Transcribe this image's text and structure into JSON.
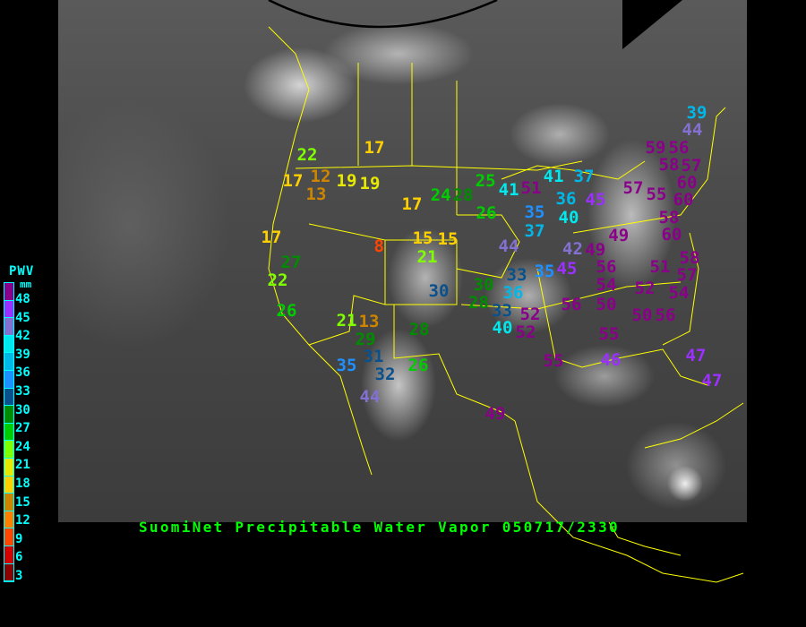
{
  "title": "SuomiNet Precipitable Water Vapor 050717/2330",
  "legend": {
    "title": "PWV",
    "unit": "mm",
    "ticks": [
      "48",
      "45",
      "42",
      "39",
      "36",
      "33",
      "30",
      "27",
      "24",
      "21",
      "18",
      "15",
      "12",
      "9",
      "6",
      "3"
    ],
    "colors": [
      "#8b008b",
      "#9b30ff",
      "#8470d0",
      "#00e8ee",
      "#00b8e8",
      "#1e90ff",
      "#0a508c",
      "#008b00",
      "#00cd00",
      "#7fff00",
      "#e8e800",
      "#ffd000",
      "#cd8500",
      "#ff8000",
      "#ff4500",
      "#d40000",
      "#8b0000"
    ]
  },
  "readings": [
    {
      "value": "22"
    },
    {
      "value": "17"
    },
    {
      "value": "17"
    },
    {
      "value": "12"
    },
    {
      "value": "13"
    },
    {
      "value": "19"
    },
    {
      "value": "19"
    },
    {
      "value": "17"
    },
    {
      "value": "24"
    },
    {
      "value": "28"
    },
    {
      "value": "25"
    },
    {
      "value": "26"
    },
    {
      "value": "17"
    },
    {
      "value": "8"
    },
    {
      "value": "15"
    },
    {
      "value": "15"
    },
    {
      "value": "21"
    },
    {
      "value": "27"
    },
    {
      "value": "22"
    },
    {
      "value": "26"
    },
    {
      "value": "21"
    },
    {
      "value": "13"
    },
    {
      "value": "29"
    },
    {
      "value": "28"
    },
    {
      "value": "31"
    },
    {
      "value": "35"
    },
    {
      "value": "32"
    },
    {
      "value": "26"
    },
    {
      "value": "44"
    },
    {
      "value": "30"
    },
    {
      "value": "30",
      "color": "#008b00"
    },
    {
      "value": "28"
    },
    {
      "value": "33",
      "color": "#0a508c"
    },
    {
      "value": "33",
      "color": "#0a508c"
    },
    {
      "value": "36"
    },
    {
      "value": "40"
    },
    {
      "value": "52"
    },
    {
      "value": "52"
    },
    {
      "value": "49"
    },
    {
      "value": "39",
      "color": "#00b8e8"
    },
    {
      "value": "44"
    },
    {
      "value": "59"
    },
    {
      "value": "56"
    },
    {
      "value": "58"
    },
    {
      "value": "57"
    },
    {
      "value": "41"
    },
    {
      "value": "37"
    },
    {
      "value": "41"
    },
    {
      "value": "51"
    },
    {
      "value": "57"
    },
    {
      "value": "60"
    },
    {
      "value": "55"
    },
    {
      "value": "60"
    },
    {
      "value": "58"
    },
    {
      "value": "60"
    },
    {
      "value": "36"
    },
    {
      "value": "45"
    },
    {
      "value": "35"
    },
    {
      "value": "40"
    },
    {
      "value": "37"
    },
    {
      "value": "49"
    },
    {
      "value": "44"
    },
    {
      "value": "42"
    },
    {
      "value": "49"
    },
    {
      "value": "35"
    },
    {
      "value": "45"
    },
    {
      "value": "56"
    },
    {
      "value": "51"
    },
    {
      "value": "58"
    },
    {
      "value": "57"
    },
    {
      "value": "54"
    },
    {
      "value": "52"
    },
    {
      "value": "54"
    },
    {
      "value": "56"
    },
    {
      "value": "50"
    },
    {
      "value": "50"
    },
    {
      "value": "56"
    },
    {
      "value": "55"
    },
    {
      "value": "55"
    },
    {
      "value": "46"
    },
    {
      "value": "47"
    },
    {
      "value": "47"
    }
  ]
}
